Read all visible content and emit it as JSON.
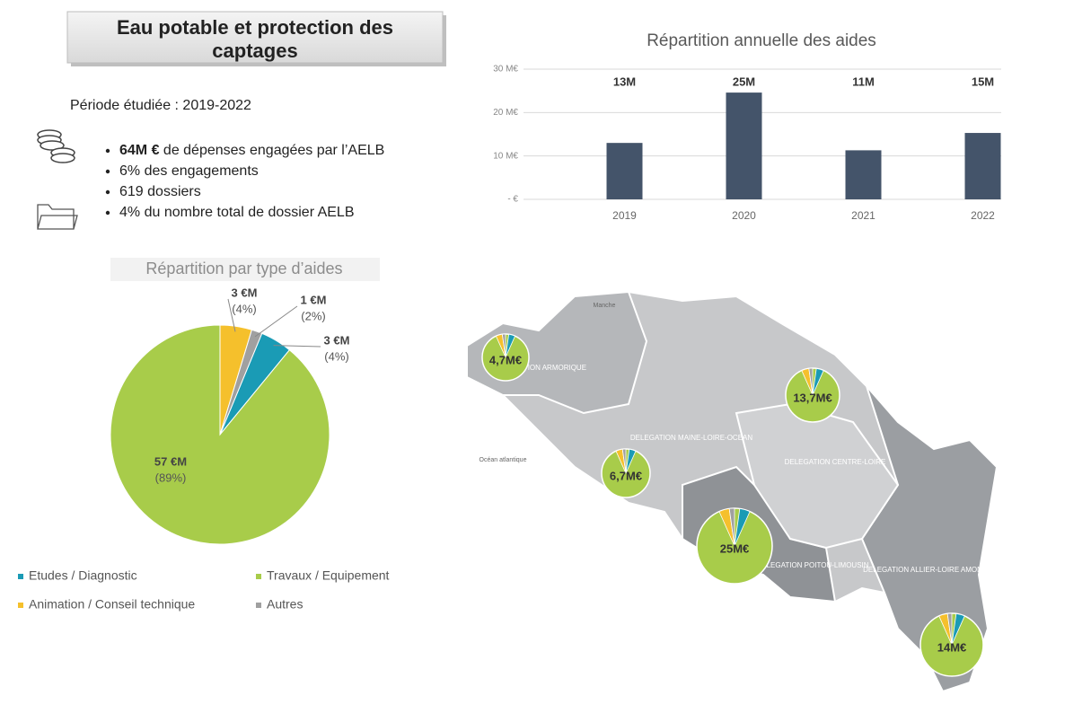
{
  "header": {
    "title": [
      "Eau potable et protection des",
      "captages"
    ],
    "period": "Période étudiée : 2019-2022"
  },
  "facts": [
    {
      "bold": "64M €",
      "text": " de dépenses engagées par l’AELB"
    },
    {
      "text": "6% des engagements"
    },
    {
      "text": "619 dossiers"
    },
    {
      "text": "4% du nombre total de dossier AELB"
    }
  ],
  "chart_data": [
    {
      "type": "bar",
      "title": "Répartition annuelle des aides",
      "categories": [
        "2019",
        "2020",
        "2021",
        "2022"
      ],
      "values": [
        13,
        24.6,
        11.3,
        15.3
      ],
      "value_labels": [
        "13M",
        "25M",
        "11M",
        "15M"
      ],
      "color": "#44546a",
      "ylim": [
        0,
        30
      ],
      "yticks": [
        {
          "value": 0,
          "label": "- €"
        },
        {
          "value": 10,
          "label": "10 M€"
        },
        {
          "value": 20,
          "label": "20 M€"
        },
        {
          "value": 30,
          "label": "30 M€"
        }
      ],
      "grid": true
    },
    {
      "type": "pie",
      "title": "Répartition par type d’aides",
      "categories": [
        "Etudes / Diagnostic",
        "Travaux / Equipement",
        "Animation / Conseil technique",
        "Autres"
      ],
      "values": [
        3,
        57,
        3,
        1
      ],
      "value_labels": [
        "3 €M",
        "57 €M",
        "3 €M",
        "1 €M"
      ],
      "percent_labels": [
        "(4%)",
        "(89%)",
        "(4%)",
        "(2%)"
      ],
      "colors": [
        "#1a9bb5",
        "#a8cc4a",
        "#f5c02c",
        "#a0a0a0"
      ],
      "legend": "bottom"
    }
  ],
  "map": {
    "labels": [
      "Manche",
      "Océan atlantique"
    ],
    "regions": [
      {
        "name": "DELEGATION ARMORIQUE",
        "amount": "4,7M€"
      },
      {
        "name": "DELEGATION MAINE-LOIRE-OCEAN",
        "amount": "6,7M€"
      },
      {
        "name": "DELEGATION CENTRE-LOIRE",
        "amount": "13,7M€"
      },
      {
        "name": "DELEGATION POITOU-LIMOUSIN",
        "amount": "25M€"
      },
      {
        "name": "DELEGATION ALLIER-LOIRE AMONT",
        "amount": "14M€"
      }
    ]
  }
}
